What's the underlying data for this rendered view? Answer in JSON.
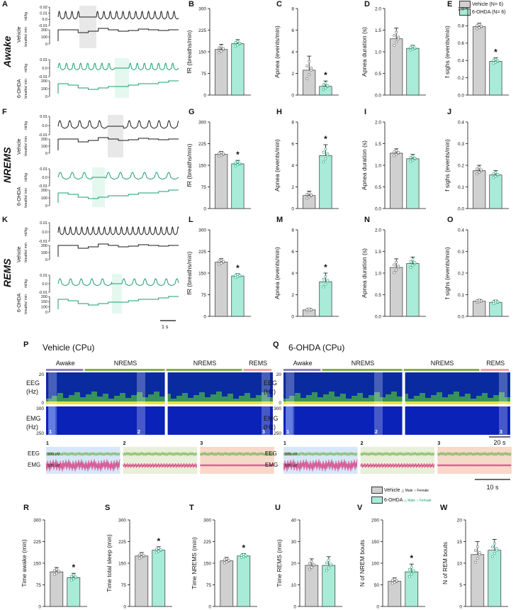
{
  "colors": {
    "vehicle": "#d0d0d0",
    "ohda": "#a8ecd8",
    "ohda_trace": "#1a9e72",
    "vehicle_trace": "#1a1a1a",
    "awake_bar": "#8a7fc4",
    "nrems_bar": "#7fb24a",
    "rems_bar": "#f2a0a0",
    "eeg_wave": "#6ab04c",
    "emg_wave": "#d6246e",
    "box1": "#d7e7f7",
    "box2": "#e9efd9",
    "box3": "#f7d9c9"
  },
  "row_labels": {
    "awake": "Awake",
    "nrems": "NREMS",
    "rems": "REMS"
  },
  "trace_labels": {
    "vehicle": "Vehicle",
    "ohda": "6-OHDA",
    "mlkg": "ml/kg",
    "breaths": "breaths/ min",
    "scale": "1 s"
  },
  "trace_ticks": {
    "A_top": [
      "0.02",
      "0.01",
      "0.0",
      "-0.01"
    ],
    "A_bot": [
      "200",
      "100",
      "0"
    ],
    "A_ohda_top": [
      "0.01",
      "0.0",
      "-0.01"
    ],
    "A_ohda_bot": [
      "200",
      "100",
      "0"
    ],
    "F_top": [
      "0.01",
      "0.0",
      "-0.01"
    ],
    "F_bot": [
      "200",
      "100",
      "0"
    ],
    "F_ohda_top": [
      "0.01",
      "0.0",
      "-0.01"
    ],
    "F_ohda_bot": [
      "200",
      "100",
      "0"
    ],
    "K_top": [
      "0.01",
      "0.0",
      "-0.01"
    ],
    "K_bot": [
      "200",
      "100",
      "0"
    ],
    "K_ohda_top": [
      "0.01",
      "0.0",
      "-0.01"
    ],
    "K_ohda_bot": [
      "200",
      "150",
      "100",
      "0"
    ]
  },
  "legend_top": {
    "vehicle": "Vehicle (N= 6)",
    "ohda": "6-OHDA (N= 6)"
  },
  "spectrograms": {
    "P_title": "Vehicle (CPu)",
    "Q_title": "6-OHDA (CPu)",
    "stages_P": [
      "Awake",
      "NREMS",
      "NREMS",
      "REMS"
    ],
    "stages_Q": [
      "Awake",
      "NREMS",
      "NREMS",
      "REMS"
    ],
    "eeg_label": "EEG (Hz)",
    "emg_label": "EMG (Hz)",
    "eeg_ticks": [
      "20",
      "0"
    ],
    "emg_ticks": [
      "300",
      "250"
    ],
    "markers": [
      "1",
      "2",
      "3"
    ],
    "scale_20s": "20 s",
    "raw_eeg": "EEG",
    "raw_emg": "EMG",
    "raw_scale": "500 uV",
    "scale_10s": "10 s"
  },
  "legend_bottom": {
    "vehicle": "Vehicle",
    "ohda": "6-OHDA",
    "male": "Male",
    "female": "Female"
  },
  "letters": {
    "A": "A",
    "B": "B",
    "C": "C",
    "D": "D",
    "E": "E",
    "F": "F",
    "G": "G",
    "H": "H",
    "I": "I",
    "J": "J",
    "K": "K",
    "L": "L",
    "M": "M",
    "N": "N",
    "O": "O",
    "P": "P",
    "Q": "Q",
    "R": "R",
    "S": "S",
    "T": "T",
    "U": "U",
    "V": "V",
    "W": "W"
  },
  "chart_data": [
    {
      "id": "B",
      "type": "bar",
      "ylabel": "fR (breaths/min)",
      "ylim": [
        0,
        300
      ],
      "yticks": [
        0,
        75,
        150,
        225,
        300
      ],
      "categories": [
        "Vehicle",
        "6-OHDA"
      ],
      "values": [
        158,
        178
      ],
      "err": [
        18,
        14
      ],
      "sig": false
    },
    {
      "id": "C",
      "type": "bar",
      "ylabel": "Apnea (events/min)",
      "ylim": [
        0,
        8
      ],
      "yticks": [
        0,
        2,
        4,
        6,
        8
      ],
      "categories": [
        "Vehicle",
        "6-OHDA"
      ],
      "values": [
        2.3,
        0.8
      ],
      "err": [
        1.3,
        0.5
      ],
      "sig": true
    },
    {
      "id": "D",
      "type": "bar",
      "ylabel": "Apnea duration (s)",
      "ylim": [
        0,
        2
      ],
      "yticks": [
        0,
        0.5,
        1.0,
        1.5,
        2.0
      ],
      "categories": [
        "Vehicle",
        "6-OHDA"
      ],
      "values": [
        1.3,
        1.08
      ],
      "err": [
        0.25,
        0.07
      ],
      "sig": false
    },
    {
      "id": "E",
      "type": "bar",
      "ylabel": "f sighs (events/min)",
      "ylim": [
        0,
        1
      ],
      "yticks": [
        0,
        0.2,
        0.4,
        0.6,
        0.8,
        1.0
      ],
      "categories": [
        "Vehicle",
        "6-OHDA"
      ],
      "values": [
        0.79,
        0.39
      ],
      "err": [
        0.04,
        0.04
      ],
      "sig": true
    },
    {
      "id": "G",
      "type": "bar",
      "ylabel": "fR (breaths/min)",
      "ylim": [
        0,
        300
      ],
      "yticks": [
        0,
        75,
        150,
        225,
        300
      ],
      "categories": [
        "Vehicle",
        "6-OHDA"
      ],
      "values": [
        188,
        155
      ],
      "err": [
        10,
        12
      ],
      "sig": true
    },
    {
      "id": "H",
      "type": "bar",
      "ylabel": "Apnea (events/min)",
      "ylim": [
        0,
        8
      ],
      "yticks": [
        0,
        2,
        4,
        6,
        8
      ],
      "categories": [
        "Vehicle",
        "6-OHDA"
      ],
      "values": [
        1.2,
        4.9
      ],
      "err": [
        0.4,
        1.0
      ],
      "sig": true
    },
    {
      "id": "I",
      "type": "bar",
      "ylabel": "Apnea duration (s)",
      "ylim": [
        0,
        2
      ],
      "yticks": [
        0,
        0.5,
        1.0,
        1.5,
        2.0
      ],
      "categories": [
        "Vehicle",
        "6-OHDA"
      ],
      "values": [
        1.28,
        1.15
      ],
      "err": [
        0.1,
        0.1
      ],
      "sig": false
    },
    {
      "id": "J",
      "type": "bar",
      "ylabel": "f sighs (events/min)",
      "ylim": [
        0,
        0.4
      ],
      "yticks": [
        0,
        0.1,
        0.2,
        0.3,
        0.4
      ],
      "categories": [
        "Vehicle",
        "6-OHDA"
      ],
      "values": [
        0.175,
        0.155
      ],
      "err": [
        0.025,
        0.02
      ],
      "sig": false
    },
    {
      "id": "L",
      "type": "bar",
      "ylabel": "fR (breaths/min)",
      "ylim": [
        0,
        300
      ],
      "yticks": [
        0,
        75,
        150,
        225,
        300
      ],
      "categories": [
        "Vehicle",
        "6-OHDA"
      ],
      "values": [
        188,
        140
      ],
      "err": [
        12,
        8
      ],
      "sig": true
    },
    {
      "id": "M",
      "type": "bar",
      "ylabel": "Apnea (events/min)",
      "ylim": [
        0,
        8
      ],
      "yticks": [
        0,
        2,
        4,
        6,
        8
      ],
      "categories": [
        "Vehicle",
        "6-OHDA"
      ],
      "values": [
        0.6,
        3.2
      ],
      "err": [
        0.15,
        0.8
      ],
      "sig": true
    },
    {
      "id": "N",
      "type": "bar",
      "ylabel": "Apnea duration (s)",
      "ylim": [
        0,
        2
      ],
      "yticks": [
        0,
        0.5,
        1.0,
        1.5,
        2.0
      ],
      "categories": [
        "Vehicle",
        "6-OHDA"
      ],
      "values": [
        1.13,
        1.22
      ],
      "err": [
        0.2,
        0.15
      ],
      "sig": false
    },
    {
      "id": "O",
      "type": "bar",
      "ylabel": "f sighs (events/min)",
      "ylim": [
        0,
        0.4
      ],
      "yticks": [
        0,
        0.1,
        0.2,
        0.3,
        0.4
      ],
      "categories": [
        "Vehicle",
        "6-OHDA"
      ],
      "values": [
        0.07,
        0.065
      ],
      "err": [
        0.008,
        0.01
      ],
      "sig": false
    },
    {
      "id": "R",
      "type": "bar",
      "ylabel": "Time awake (min)",
      "ylim": [
        0,
        300
      ],
      "yticks": [
        0,
        75,
        150,
        225,
        300
      ],
      "categories": [
        "Vehicle",
        "6-OHDA"
      ],
      "values": [
        120,
        100
      ],
      "err": [
        15,
        15
      ],
      "sig": true
    },
    {
      "id": "S",
      "type": "bar",
      "ylabel": "Time total sleep  (min)",
      "ylim": [
        0,
        300
      ],
      "yticks": [
        0,
        75,
        150,
        225,
        300
      ],
      "categories": [
        "Vehicle",
        "6-OHDA"
      ],
      "values": [
        175,
        195
      ],
      "err": [
        12,
        12
      ],
      "sig": true
    },
    {
      "id": "T",
      "type": "bar",
      "ylabel": "Time NREMS (min)",
      "ylim": [
        0,
        300
      ],
      "yticks": [
        0,
        75,
        150,
        225,
        300
      ],
      "categories": [
        "Vehicle",
        "6-OHDA"
      ],
      "values": [
        158,
        175
      ],
      "err": [
        12,
        8
      ],
      "sig": true
    },
    {
      "id": "U",
      "type": "bar",
      "ylabel": "Time  REMS (min)",
      "ylim": [
        0,
        40
      ],
      "yticks": [
        0,
        10,
        20,
        30,
        40
      ],
      "categories": [
        "Vehicle",
        "6-OHDA"
      ],
      "values": [
        19,
        19
      ],
      "err": [
        3,
        4
      ],
      "sig": false
    },
    {
      "id": "V",
      "type": "bar",
      "ylabel": "N of NREM bouts",
      "ylim": [
        0,
        200
      ],
      "yticks": [
        0,
        50,
        100,
        150,
        200
      ],
      "categories": [
        "Vehicle",
        "6-OHDA"
      ],
      "values": [
        58,
        80
      ],
      "err": [
        8,
        18
      ],
      "sig": true
    },
    {
      "id": "W",
      "type": "bar",
      "ylabel": "N of  REM bouts",
      "ylim": [
        0,
        20
      ],
      "yticks": [
        0,
        5,
        10,
        15,
        20
      ],
      "categories": [
        "Vehicle",
        "6-OHDA"
      ],
      "values": [
        12,
        13
      ],
      "err": [
        3,
        2.5
      ],
      "sig": false
    }
  ]
}
